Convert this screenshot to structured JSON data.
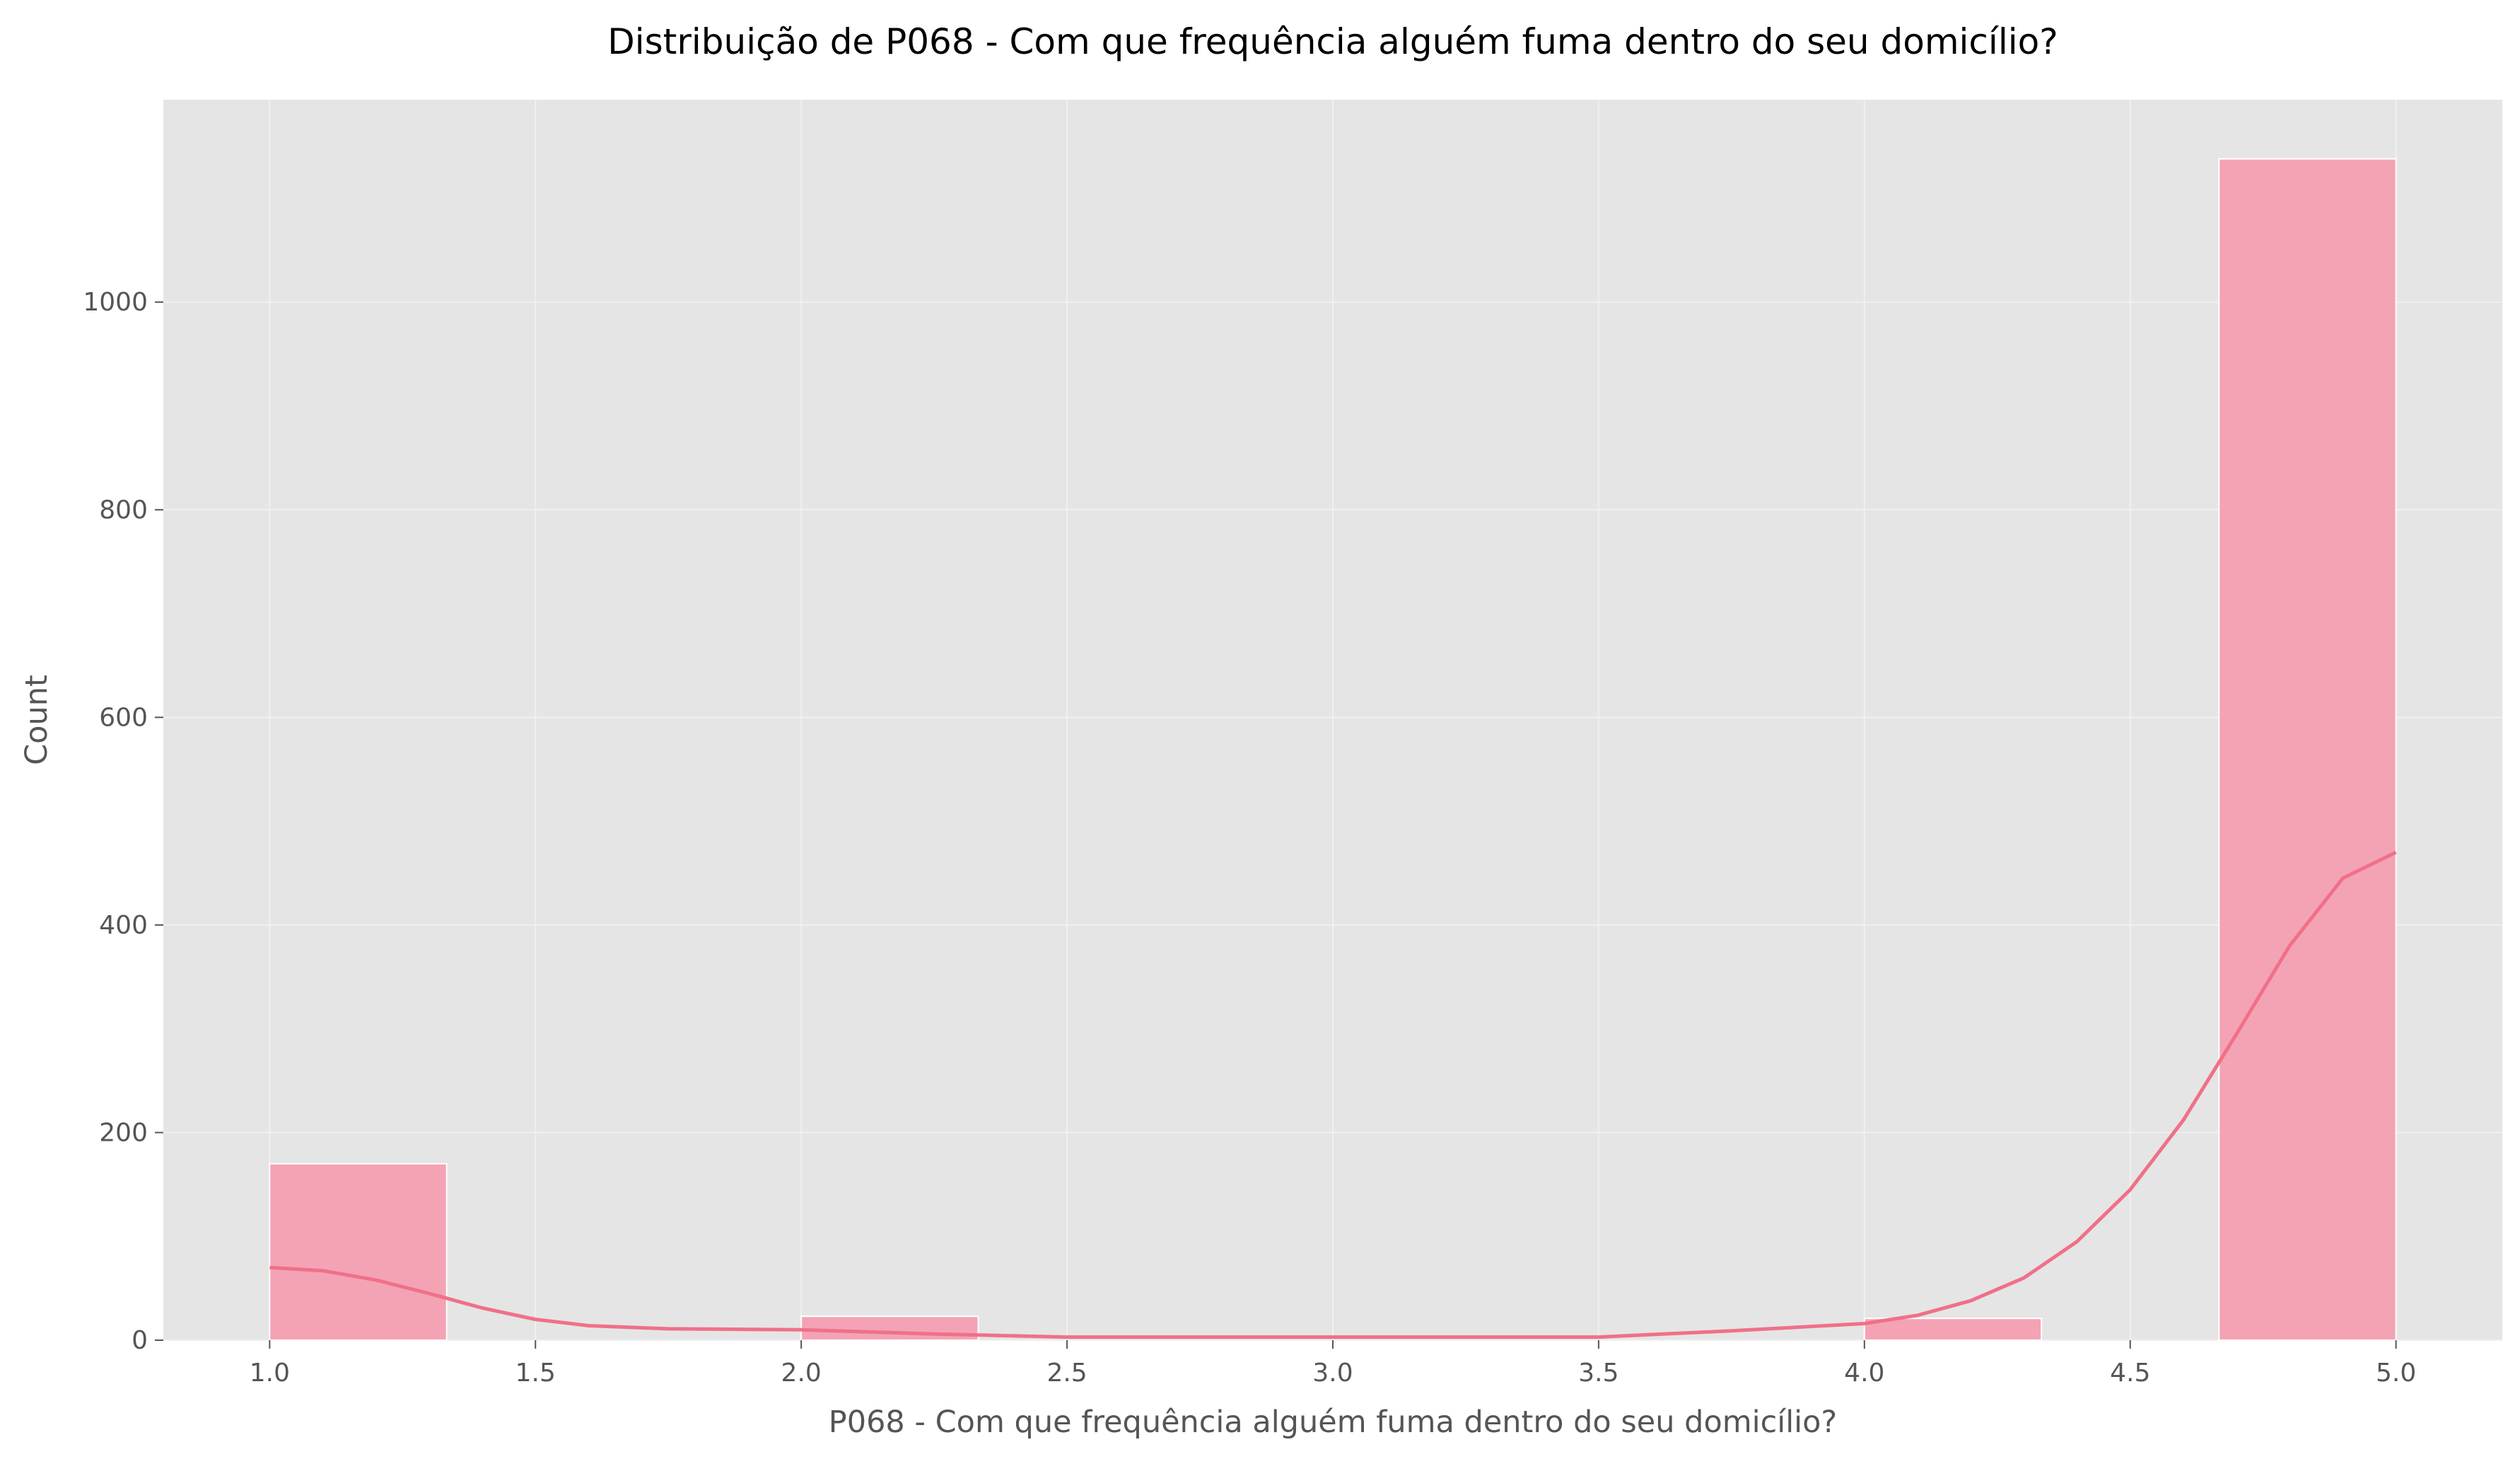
{
  "chart_data": {
    "type": "bar",
    "title": "Distribuição de P068 - Com que frequência alguém fuma dentro do seu domicílio?",
    "xlabel": "P068 - Com que frequência alguém fuma dentro do seu domicílio?",
    "ylabel": "Count",
    "xlim": [
      0.8,
      5.2
    ],
    "ylim": [
      0,
      1195
    ],
    "x_ticks": [
      1.0,
      1.5,
      2.0,
      2.5,
      3.0,
      3.5,
      4.0,
      4.5,
      5.0
    ],
    "x_tick_labels": [
      "1.0",
      "1.5",
      "2.0",
      "2.5",
      "3.0",
      "3.5",
      "4.0",
      "4.5",
      "5.0"
    ],
    "y_ticks": [
      0,
      200,
      400,
      600,
      800,
      1000
    ],
    "y_tick_labels": [
      "0",
      "200",
      "400",
      "600",
      "800",
      "1000"
    ],
    "grid": true,
    "histogram": {
      "bins": [
        {
          "x0": 1.0,
          "x1": 1.333,
          "count": 170
        },
        {
          "x0": 2.0,
          "x1": 2.333,
          "count": 23
        },
        {
          "x0": 4.0,
          "x1": 4.333,
          "count": 21
        },
        {
          "x0": 4.667,
          "x1": 5.0,
          "count": 1138
        }
      ]
    },
    "kde": {
      "x": [
        1.0,
        1.1,
        1.2,
        1.3,
        1.4,
        1.5,
        1.6,
        1.75,
        2.0,
        2.25,
        2.5,
        2.75,
        3.0,
        3.25,
        3.5,
        3.75,
        4.0,
        4.1,
        4.2,
        4.3,
        4.4,
        4.5,
        4.6,
        4.7,
        4.8,
        4.9,
        5.0
      ],
      "y": [
        70,
        67,
        58,
        45,
        31,
        20,
        14,
        11,
        10,
        6,
        3,
        3,
        3,
        3,
        3,
        9,
        16,
        24,
        38,
        60,
        95,
        145,
        212,
        295,
        380,
        445,
        470
      ]
    },
    "colors": {
      "background": "#e5e5e5",
      "grid": "#f0f0f0",
      "bar_fill": "#f4a3b4",
      "bar_edge": "#ffffff",
      "kde_line": "#f07088",
      "axis_text": "#555555",
      "title_text": "#000000"
    }
  }
}
